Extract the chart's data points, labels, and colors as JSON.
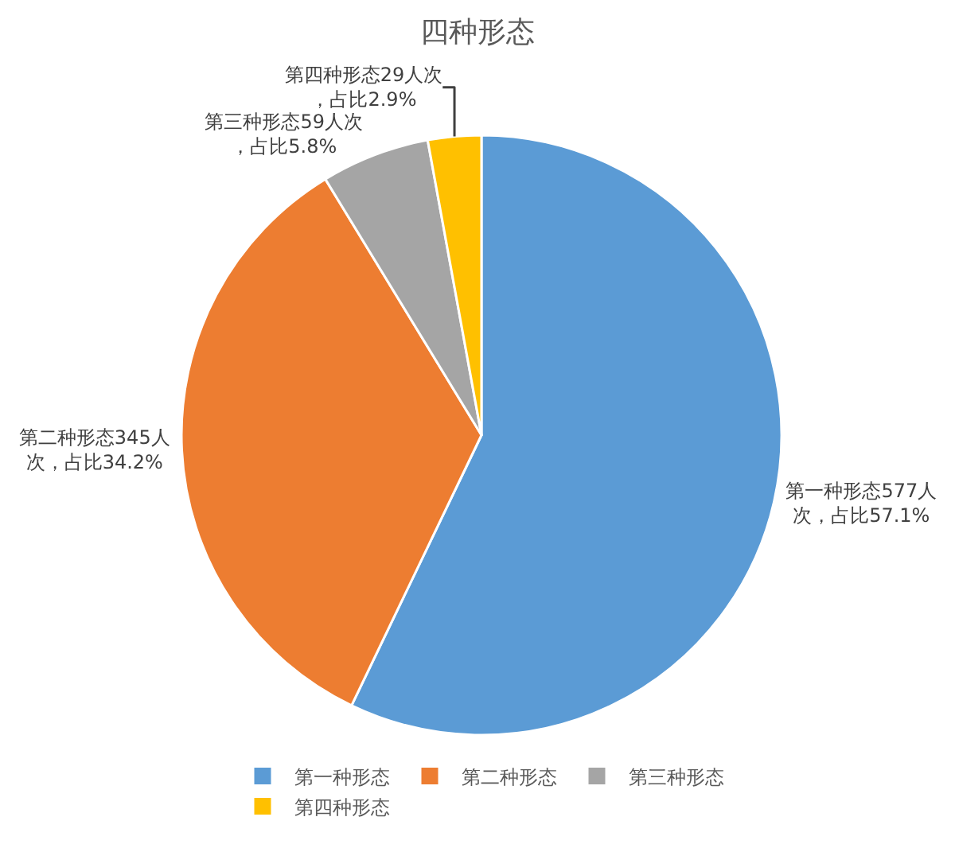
{
  "chart_data": {
    "type": "pie",
    "title": "四种形态",
    "categories": [
      "第一种形态",
      "第二种形态",
      "第三种形态",
      "第四种形态"
    ],
    "values": [
      577,
      345,
      59,
      29
    ],
    "colors": [
      "#5b9bd5",
      "#ed7d31",
      "#a5a5a5",
      "#ffc000"
    ],
    "value_labels": [
      "第一种形态577人次，占比57.1%",
      "第二种形态345人次，占比34.2%",
      "第三种形态59人次，占比5.8%",
      "第四种形态29人次，占比2.9%"
    ],
    "legend": "bottom"
  }
}
